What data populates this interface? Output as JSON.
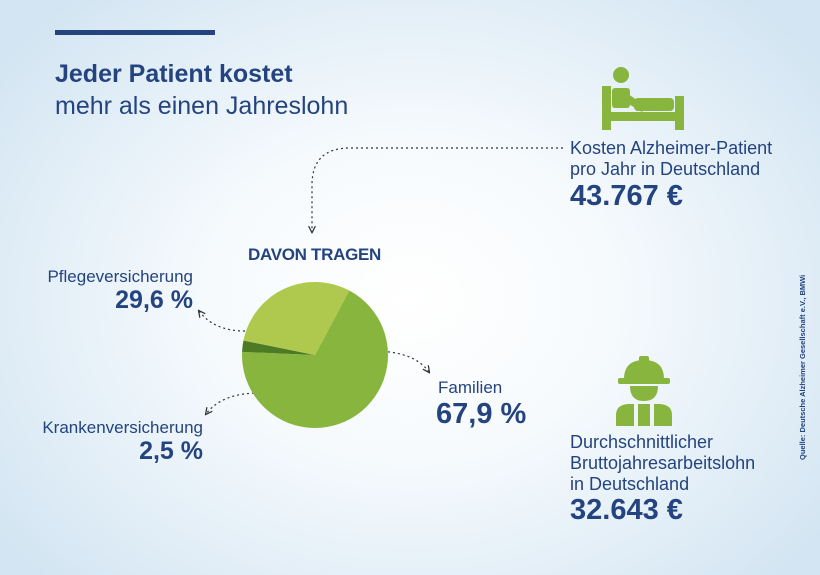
{
  "title": {
    "line1": "Jeder Patient kostet",
    "line2": "mehr als einen Jahreslohn"
  },
  "chart_data": {
    "type": "pie",
    "title": "DAVON TRAGEN",
    "unit": "%",
    "series": [
      {
        "name": "Familien",
        "value": 67.9,
        "label": "67,9 %",
        "color": "#87b53e"
      },
      {
        "name": "Krankenversicherung",
        "value": 2.5,
        "label": "2,5 %",
        "color": "#4d7a24"
      },
      {
        "name": "Pflegeversicherung",
        "value": 29.6,
        "label": "29,6 %",
        "color": "#aec94e"
      }
    ]
  },
  "patient": {
    "icon": "patient-bed-icon",
    "line1": "Kosten Alzheimer-Patient",
    "line2": "pro Jahr in Deutschland",
    "amount": "43.767 €"
  },
  "worker": {
    "icon": "construction-worker-icon",
    "line1": "Durchschnittlicher",
    "line2": "Bruttojahresarbeitslohn",
    "line3": "in Deutschland",
    "amount": "32.643 €"
  },
  "source": "Quelle: Deutsche Alzheimer Gesellschaft e.V., BMWi",
  "colors": {
    "navy": "#24447f",
    "icon_green": "#87b53e"
  }
}
